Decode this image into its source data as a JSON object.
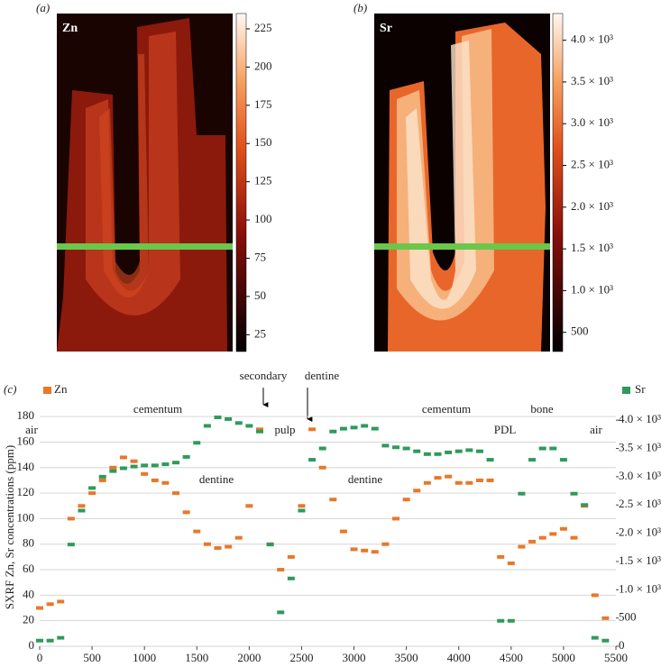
{
  "chart_data": [
    {
      "type": "image",
      "panel": "(a)",
      "label": "Zn",
      "colorbar": {
        "lim": [
          14,
          235
        ],
        "ticks": [
          25,
          50,
          75,
          100,
          125,
          150,
          175,
          200,
          225
        ]
      }
    },
    {
      "type": "image",
      "panel": "(b)",
      "label": "Sr",
      "colorbar": {
        "lim": [
          270,
          4320
        ],
        "ticks": [
          500,
          {
            "value": 1000,
            "label": "1.0 × 10³"
          },
          {
            "value": 1500,
            "label": "1.5 × 10³"
          },
          {
            "value": 2000,
            "label": "2.0 × 10³"
          },
          {
            "value": 2500,
            "label": "2.5 × 10³"
          },
          {
            "value": 3000,
            "label": "3.0 × 10³"
          },
          {
            "value": 3500,
            "label": "3.5 × 10³"
          },
          {
            "value": 4000,
            "label": "4.0 × 10³"
          }
        ]
      }
    },
    {
      "type": "scatter",
      "panel": "(c)",
      "ylabel": "SXRF Zn, Sr concentrations (ppm)",
      "x": [
        0,
        100,
        200,
        300,
        400,
        500,
        600,
        700,
        800,
        900,
        1000,
        1100,
        1200,
        1300,
        1400,
        1500,
        1600,
        1700,
        1800,
        1900,
        2000,
        2100,
        2200,
        2300,
        2400,
        2500,
        2600,
        2700,
        2800,
        2900,
        3000,
        3100,
        3200,
        3300,
        3400,
        3500,
        3600,
        3700,
        3800,
        3900,
        4000,
        4100,
        4200,
        4300,
        4400,
        4500,
        4600,
        4700,
        4800,
        4900,
        5000,
        5100,
        5200,
        5300,
        5400
      ],
      "xlim": [
        0,
        5500
      ],
      "xticks": [
        0,
        500,
        1000,
        1500,
        2000,
        2500,
        3000,
        3500,
        4000,
        4500,
        5000,
        5500
      ],
      "ylim": [
        0,
        190
      ],
      "yticks": [
        0,
        20,
        40,
        60,
        80,
        100,
        120,
        140,
        160,
        180
      ],
      "y2lim": [
        0,
        4290
      ],
      "y2ticks": [
        0,
        500,
        {
          "value": 1000,
          "label": "1.0 × 10³"
        },
        {
          "value": 1500,
          "label": "1.5 × 10³"
        },
        {
          "value": 2000,
          "label": "2.0 × 10³"
        },
        {
          "value": 2500,
          "label": "2.5 × 10³"
        },
        {
          "value": 3000,
          "label": "3.0 × 10³"
        },
        {
          "value": 3500,
          "label": "3.5 × 10³"
        },
        {
          "value": 4000,
          "label": "4.0 × 10³"
        }
      ],
      "grid": true,
      "series": [
        {
          "name": "Zn",
          "color": "#e8782a",
          "values": [
            30,
            33,
            35,
            100,
            110,
            120,
            130,
            140,
            148,
            145,
            135,
            130,
            128,
            120,
            105,
            90,
            80,
            77,
            78,
            85,
            110,
            170,
            80,
            60,
            70,
            110,
            170,
            140,
            115,
            90,
            76,
            75,
            74,
            80,
            100,
            115,
            122,
            128,
            132,
            133,
            128,
            128,
            130,
            130,
            70,
            65,
            78,
            82,
            85,
            88,
            92,
            85,
            110,
            40,
            22
          ]
        },
        {
          "name": "Sr",
          "color": "#2e9a5c",
          "axis": "y2",
          "values": [
            100,
            100,
            150,
            1800,
            2400,
            2800,
            3000,
            3100,
            3150,
            3180,
            3200,
            3200,
            3220,
            3250,
            3350,
            3600,
            3900,
            4050,
            4020,
            3950,
            3900,
            3800,
            1800,
            600,
            1200,
            2400,
            3300,
            3500,
            3800,
            3850,
            3870,
            3900,
            3850,
            3550,
            3520,
            3500,
            3450,
            3400,
            3400,
            3430,
            3450,
            3470,
            3450,
            3300,
            450,
            450,
            2700,
            3300,
            3500,
            3500,
            3300,
            2700,
            2500,
            150,
            100
          ]
        }
      ],
      "annotations": [
        "air",
        "cementum",
        "secondary",
        "pulp",
        "dentine",
        "dentine",
        "dentine",
        "cementum",
        "PDL",
        "bone",
        "air"
      ]
    }
  ]
}
